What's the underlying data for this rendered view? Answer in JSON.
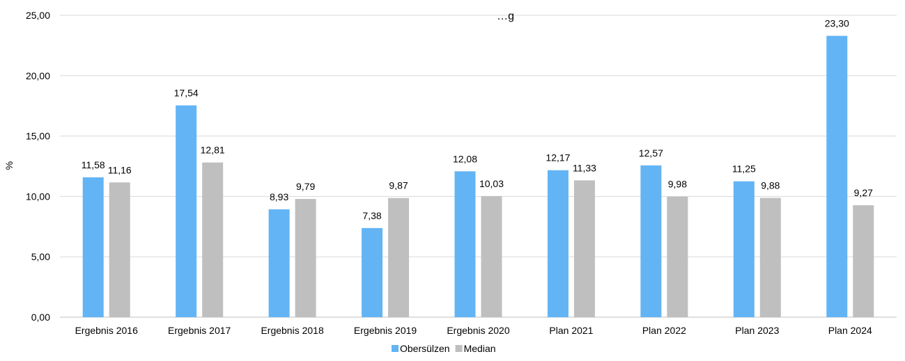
{
  "chart_data": {
    "type": "bar",
    "title": "…g",
    "ylabel": "%",
    "xlabel": "",
    "ylim": [
      0,
      25
    ],
    "yticks": [
      "0,00",
      "5,00",
      "10,00",
      "15,00",
      "20,00",
      "25,00"
    ],
    "grid": true,
    "legend_position": "bottom",
    "categories": [
      "Ergebnis 2016",
      "Ergebnis 2017",
      "Ergebnis 2018",
      "Ergebnis 2019",
      "Ergebnis 2020",
      "Plan 2021",
      "Plan 2022",
      "Plan 2023",
      "Plan 2024"
    ],
    "series": [
      {
        "name": "Obersülzen",
        "color": "#63b4f4",
        "values": [
          11.58,
          17.54,
          8.93,
          7.38,
          12.08,
          12.17,
          12.57,
          11.25,
          23.3
        ],
        "labels": [
          "11,58",
          "17,54",
          "8,93",
          "7,38",
          "12,08",
          "12,17",
          "12,57",
          "11,25",
          "23,30"
        ]
      },
      {
        "name": "Median",
        "color": "#bfbfbf",
        "values": [
          11.16,
          12.81,
          9.79,
          9.87,
          10.03,
          11.33,
          9.98,
          9.88,
          9.27
        ],
        "labels": [
          "11,16",
          "12,81",
          "9,79",
          "9,87",
          "10,03",
          "11,33",
          "9,98",
          "9,88",
          "9,27"
        ]
      }
    ]
  }
}
